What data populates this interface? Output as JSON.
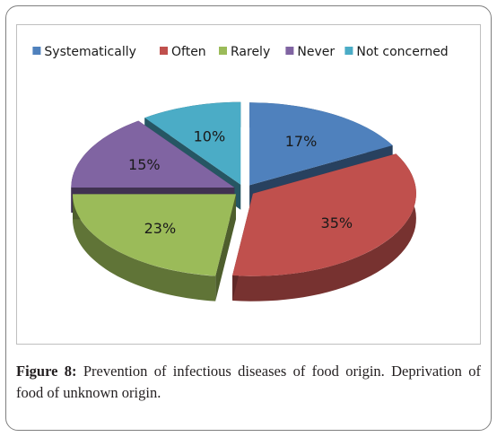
{
  "chart_data": {
    "type": "pie",
    "style": "3d-exploded",
    "categories": [
      "Systematically",
      "Often",
      "Rarely",
      "Never",
      "Not concerned"
    ],
    "values": [
      17,
      35,
      23,
      15,
      10
    ],
    "labels": [
      "17%",
      "35%",
      "23%",
      "15%",
      "10%"
    ],
    "colors": [
      "#4f81bd",
      "#c0504d",
      "#9bbb59",
      "#8064a2",
      "#4bacc6"
    ],
    "legend": "top"
  },
  "caption": {
    "figure_label": "Figure 8:",
    "text": "Prevention of infectious diseases of food origin. Deprivation of food of unknown origin."
  }
}
